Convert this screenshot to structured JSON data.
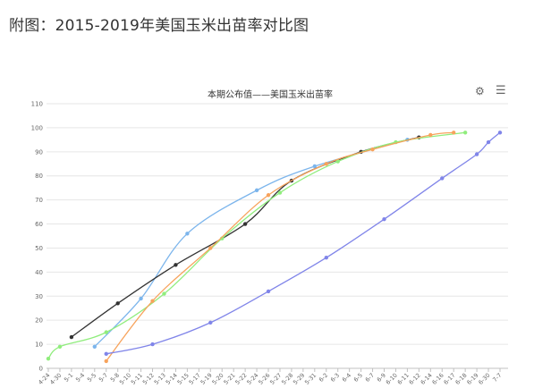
{
  "page": {
    "heading": "附图：2015-2019年美国玉米出苗率对比图"
  },
  "toolbar": {
    "settings_icon": "gear-icon",
    "menu_icon": "hamburger-menu-icon"
  },
  "chart_data": {
    "type": "line",
    "title": "本期公布值——美国玉米出苗率",
    "xlabel": "",
    "ylabel": "",
    "ylim": [
      0,
      110
    ],
    "yticks": [
      0,
      10,
      20,
      30,
      40,
      50,
      60,
      70,
      80,
      90,
      100,
      110
    ],
    "grid": true,
    "categories": [
      "4-24",
      "4-30",
      "5-1",
      "5-4",
      "5-5",
      "5-7",
      "5-8",
      "5-10",
      "5-11",
      "5-12",
      "5-13",
      "5-14",
      "5-15",
      "5-17",
      "5-19",
      "5-20",
      "5-21",
      "5-22",
      "5-24",
      "5-26",
      "5-27",
      "5-28",
      "5-29",
      "5-31",
      "6-2",
      "6-3",
      "6-4",
      "6-5",
      "6-7",
      "6-9",
      "6-10",
      "6-11",
      "6-12",
      "6-14",
      "6-16",
      "6-17",
      "6-18",
      "6-19",
      "6-30",
      "7-7"
    ],
    "series": [
      {
        "color": "#7cb5ec",
        "points": [
          [
            4,
            9
          ],
          [
            8,
            29
          ],
          [
            12,
            56
          ],
          [
            18,
            74
          ],
          [
            23,
            84
          ],
          [
            31,
            95
          ]
        ]
      },
      {
        "color": "#333333",
        "points": [
          [
            2,
            13
          ],
          [
            6,
            27
          ],
          [
            11,
            43
          ],
          [
            17,
            60
          ],
          [
            21,
            78
          ],
          [
            27,
            90
          ],
          [
            32,
            96
          ]
        ]
      },
      {
        "color": "#90ed7d",
        "points": [
          [
            0,
            4
          ],
          [
            1,
            9
          ],
          [
            5,
            15
          ],
          [
            10,
            31
          ],
          [
            15,
            54
          ],
          [
            20,
            73
          ],
          [
            25,
            86
          ],
          [
            30,
            94
          ],
          [
            36,
            98
          ]
        ]
      },
      {
        "color": "#f7a35c",
        "points": [
          [
            5,
            3
          ],
          [
            9,
            28
          ],
          [
            14,
            50
          ],
          [
            19,
            72
          ],
          [
            24,
            85
          ],
          [
            28,
            91
          ],
          [
            33,
            97
          ],
          [
            35,
            98
          ]
        ]
      },
      {
        "color": "#8085e9",
        "points": [
          [
            5,
            6
          ],
          [
            9,
            10
          ],
          [
            14,
            19
          ],
          [
            19,
            32
          ],
          [
            24,
            46
          ],
          [
            29,
            62
          ],
          [
            34,
            79
          ],
          [
            37,
            89
          ],
          [
            38,
            94
          ],
          [
            39,
            98
          ]
        ]
      }
    ]
  }
}
